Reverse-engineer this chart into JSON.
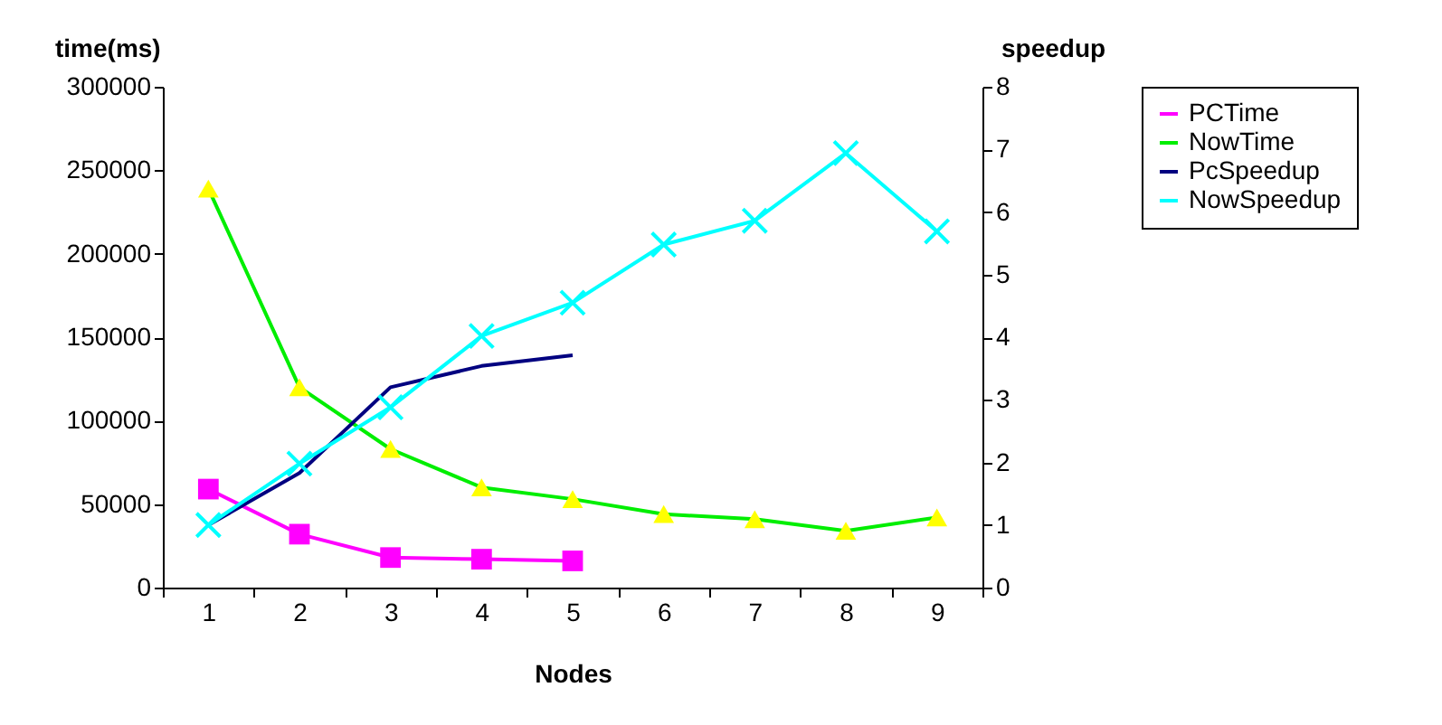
{
  "chart_data": {
    "type": "line",
    "xlabel": "Nodes",
    "ylabel": "time(ms)",
    "y2label": "speedup",
    "categories": [
      "1",
      "2",
      "3",
      "4",
      "5",
      "6",
      "7",
      "8",
      "9"
    ],
    "series": [
      {
        "name": "PCTime",
        "color": "#ff00ff",
        "marker": "square",
        "values": [
          59000,
          32000,
          18000,
          17000,
          16000,
          null,
          null,
          null,
          null
        ]
      },
      {
        "name": "NowTime",
        "color": "#00ee00",
        "marker": "triangle",
        "values": [
          239000,
          120000,
          83000,
          60000,
          53000,
          44000,
          41000,
          34000,
          42000
        ]
      },
      {
        "name": "PcSpeedup",
        "color": "#000080",
        "marker": "none",
        "axis": "y2",
        "values": [
          1,
          1.83,
          3.2,
          3.54,
          3.71,
          null,
          null,
          null,
          null
        ]
      },
      {
        "name": "NowSpeedup",
        "color": "#00ffff",
        "marker": "cross",
        "axis": "y2",
        "values": [
          1,
          1.98,
          2.88,
          4.02,
          4.55,
          5.48,
          5.86,
          6.94,
          5.69
        ]
      }
    ],
    "ylim": [
      0,
      300000
    ],
    "yticks": [
      0,
      50000,
      100000,
      150000,
      200000,
      250000,
      300000
    ],
    "y2lim": [
      0,
      8
    ],
    "y2ticks": [
      0,
      1,
      2,
      3,
      4,
      5,
      6,
      7,
      8
    ],
    "line_style": "solid",
    "grid": false,
    "legend": "right"
  }
}
